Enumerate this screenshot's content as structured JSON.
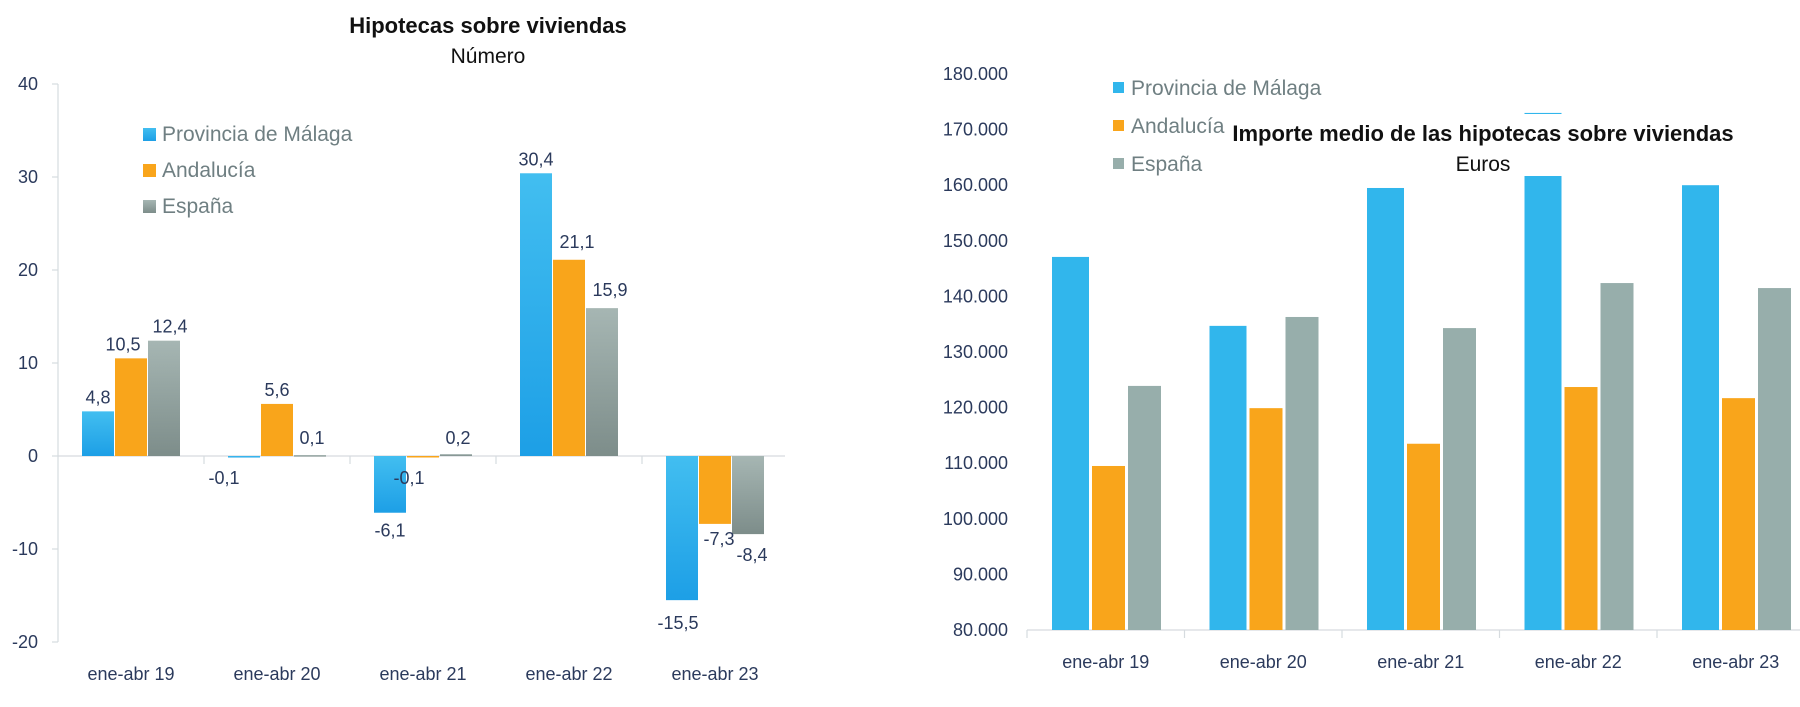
{
  "chart_data": [
    {
      "type": "bar",
      "title": "Hipotecas sobre viviendas",
      "subtitle": "Número",
      "xlabel": "",
      "ylabel": "",
      "ylim": [
        -20,
        40
      ],
      "yticks": [
        40,
        30,
        20,
        10,
        0,
        -10,
        -20
      ],
      "ytick_labels": [
        "40",
        "30",
        "20",
        "10",
        "0",
        "-10",
        "-20"
      ],
      "grid": false,
      "legend_position": "top-left",
      "categories": [
        "ene-abr 19",
        "ene-abr 20",
        "ene-abr 21",
        "ene-abr 22",
        "ene-abr 23"
      ],
      "series": [
        {
          "name": "Provincia de Málaga",
          "color": "#2fb0ec",
          "values": [
            4.8,
            -0.1,
            -6.1,
            30.4,
            -15.5
          ],
          "labels": [
            "4,8",
            "-0,1",
            "-6,1",
            "30,4",
            "-15,5"
          ]
        },
        {
          "name": "Andalucía",
          "color": "#f9a51b",
          "values": [
            10.5,
            5.6,
            -0.1,
            21.1,
            -7.3
          ],
          "labels": [
            "10,5",
            "5,6",
            "-0,1",
            "21,1",
            "-7,3"
          ]
        },
        {
          "name": "España",
          "color": "#93a5a3",
          "values": [
            12.4,
            0.1,
            0.2,
            15.9,
            -8.4
          ],
          "labels": [
            "12,4",
            "0,1",
            "0,2",
            "15,9",
            "-8,4"
          ]
        }
      ]
    },
    {
      "type": "bar",
      "title": "Importe medio de las hipotecas sobre viviendas",
      "subtitle": "Euros",
      "xlabel": "",
      "ylabel": "",
      "ylim": [
        80000,
        180000
      ],
      "yticks": [
        180000,
        170000,
        160000,
        150000,
        140000,
        130000,
        120000,
        110000,
        100000,
        90000,
        80000
      ],
      "ytick_labels": [
        "180.000",
        "170.000",
        "160.000",
        "150.000",
        "140.000",
        "130.000",
        "120.000",
        "110.000",
        "100.000",
        "90.000",
        "80.000"
      ],
      "grid": false,
      "legend_position": "top-left",
      "categories": [
        "ene-abr 19",
        "ene-abr 20",
        "ene-abr 21",
        "ene-abr 22",
        "ene-abr 23"
      ],
      "series": [
        {
          "name": "Provincia de Málaga",
          "color": "#31b6ec",
          "values": [
            147100,
            134700,
            159500,
            173000,
            160000
          ]
        },
        {
          "name": "Andalucía",
          "color": "#f9a51b",
          "values": [
            109500,
            119900,
            113500,
            123700,
            121700
          ]
        },
        {
          "name": "España",
          "color": "#97aeab",
          "values": [
            123900,
            136300,
            134300,
            142400,
            141500
          ]
        }
      ]
    }
  ]
}
